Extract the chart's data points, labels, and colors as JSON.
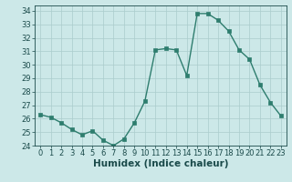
{
  "x": [
    0,
    1,
    2,
    3,
    4,
    5,
    6,
    7,
    8,
    9,
    10,
    11,
    12,
    13,
    14,
    15,
    16,
    17,
    18,
    19,
    20,
    21,
    22,
    23
  ],
  "y": [
    26.3,
    26.1,
    25.7,
    25.2,
    24.8,
    25.1,
    24.4,
    24.0,
    24.5,
    25.7,
    27.3,
    31.1,
    31.2,
    31.1,
    29.2,
    33.8,
    33.8,
    33.3,
    32.5,
    31.1,
    30.4,
    28.5,
    27.2,
    26.2
  ],
  "line_color": "#2e7d6e",
  "marker_color": "#2e7d6e",
  "bg_color": "#cce8e8",
  "grid_color": "#aacccc",
  "xlabel": "Humidex (Indice chaleur)",
  "xlim": [
    -0.5,
    23.5
  ],
  "ylim": [
    24,
    34.4
  ],
  "yticks": [
    24,
    25,
    26,
    27,
    28,
    29,
    30,
    31,
    32,
    33,
    34
  ],
  "xticks": [
    0,
    1,
    2,
    3,
    4,
    5,
    6,
    7,
    8,
    9,
    10,
    11,
    12,
    13,
    14,
    15,
    16,
    17,
    18,
    19,
    20,
    21,
    22,
    23
  ],
  "font_color": "#1a4a4a",
  "xlabel_fontsize": 7.5,
  "tick_fontsize": 6,
  "linewidth": 1.0,
  "markersize": 2.5
}
